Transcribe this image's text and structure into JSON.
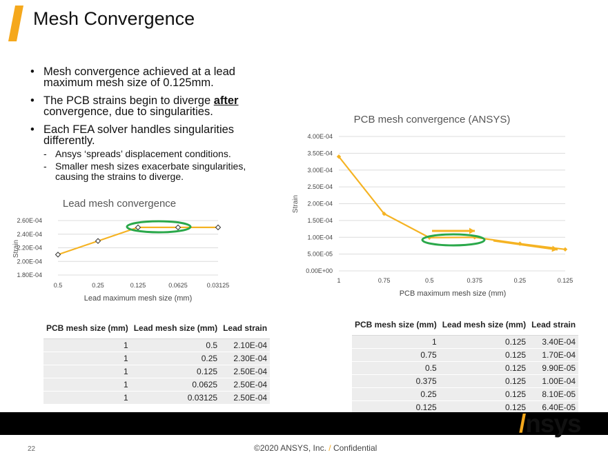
{
  "slide": {
    "title": "Mesh Convergence",
    "page_number": "22",
    "copyright_prefix": "©2020 ANSYS, Inc.",
    "copyright_suffix": "Confidential",
    "logo_text": "nsys",
    "accent_color": "#f5a81c"
  },
  "bullets": {
    "b1": "Mesh convergence achieved at a lead maximum mesh size of 0.125mm.",
    "b2_pre": "The PCB strains begin to diverge ",
    "b2_bold": "after",
    "b2_post": " convergence, due to singularities.",
    "b3": "Each FEA solver handles singularities differently.",
    "sub1": "Ansys ‘spreads’ displacement conditions.",
    "sub2": "Smaller mesh sizes exacerbate singularities, causing the strains to diverge."
  },
  "chart_data": [
    {
      "type": "line",
      "title": "Lead mesh convergence",
      "xlabel": "Lead maximum mesh size (mm)",
      "ylabel": "Strain",
      "categories": [
        "0.5",
        "0.25",
        "0.125",
        "0.0625",
        "0.03125"
      ],
      "values": [
        0.00021,
        0.00023,
        0.00025,
        0.00025,
        0.00025
      ],
      "ylim": [
        0.00018,
        0.00026
      ],
      "yticks": [
        "1.80E-04",
        "2.00E-04",
        "2.20E-04",
        "2.40E-04",
        "2.60E-04"
      ],
      "grid": true,
      "line_color": "#f5b323",
      "highlight_color": "#2aa84a"
    },
    {
      "type": "line",
      "title": "PCB mesh convergence (ANSYS)",
      "xlabel": "PCB maximum mesh size (mm)",
      "ylabel": "Strain",
      "categories": [
        "1",
        "0.75",
        "0.5",
        "0.375",
        "0.25",
        "0.125"
      ],
      "values": [
        0.00034,
        0.00017,
        9.9e-05,
        0.0001,
        8.1e-05,
        6.4e-05
      ],
      "ylim": [
        0,
        0.0004
      ],
      "yticks": [
        "0.00E+00",
        "5.00E-05",
        "1.00E-04",
        "1.50E-04",
        "2.00E-04",
        "2.50E-04",
        "3.00E-04",
        "3.50E-04",
        "4.00E-04"
      ],
      "grid": true,
      "line_color": "#f5b323",
      "highlight_color": "#2aa84a"
    }
  ],
  "table_lead": {
    "headers": [
      "PCB mesh size (mm)",
      "Lead mesh size (mm)",
      "Lead strain"
    ],
    "rows": [
      [
        "1",
        "0.5",
        "2.10E-04"
      ],
      [
        "1",
        "0.25",
        "2.30E-04"
      ],
      [
        "1",
        "0.125",
        "2.50E-04"
      ],
      [
        "1",
        "0.0625",
        "2.50E-04"
      ],
      [
        "1",
        "0.03125",
        "2.50E-04"
      ]
    ]
  },
  "table_pcb": {
    "headers": [
      "PCB mesh size (mm)",
      "Lead mesh size (mm)",
      "Lead strain"
    ],
    "rows": [
      [
        "1",
        "0.125",
        "3.40E-04"
      ],
      [
        "0.75",
        "0.125",
        "1.70E-04"
      ],
      [
        "0.5",
        "0.125",
        "9.90E-05"
      ],
      [
        "0.375",
        "0.125",
        "1.00E-04"
      ],
      [
        "0.25",
        "0.125",
        "8.10E-05"
      ],
      [
        "0.125",
        "0.125",
        "6.40E-05"
      ]
    ]
  }
}
